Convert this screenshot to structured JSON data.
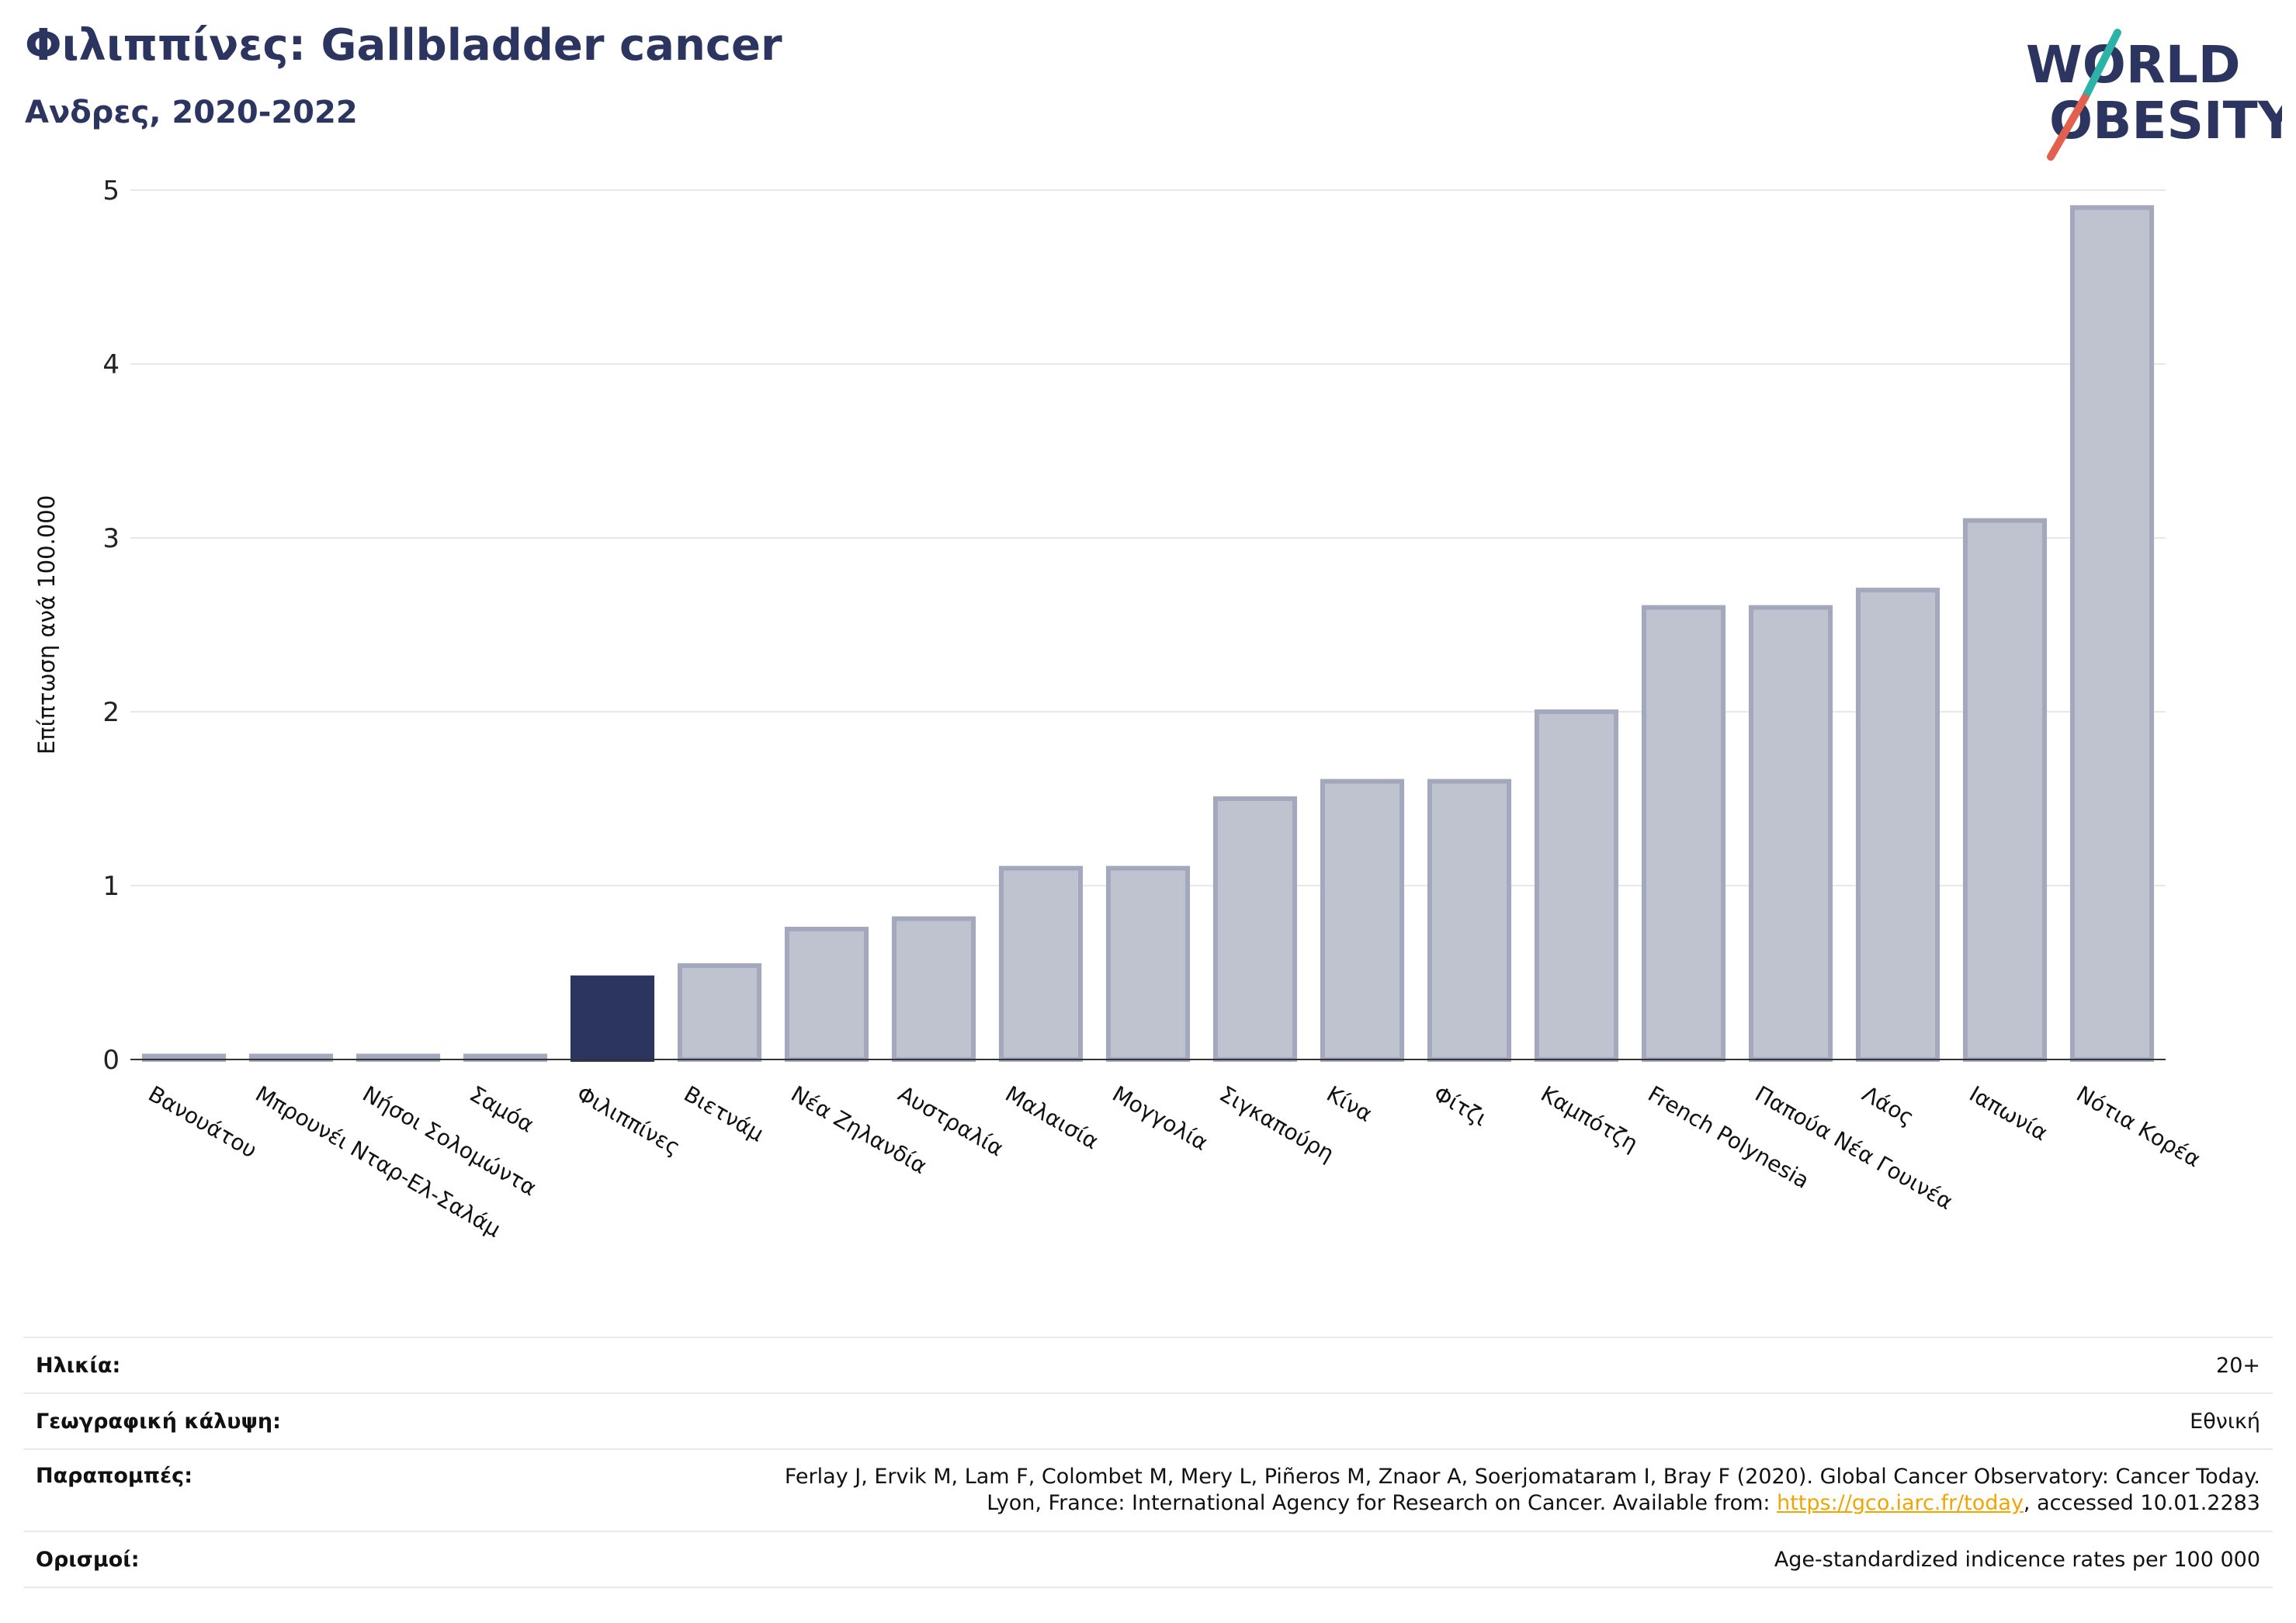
{
  "header": {
    "title": "Φιλιππίνες: Gallbladder cancer",
    "subtitle": "Ανδρες, 2020-2022"
  },
  "logo": {
    "line1": "WORLD",
    "line2": "OBESITY",
    "accent_teal": "#2ab3a6",
    "accent_red": "#e4604e",
    "text_color": "#2b3560"
  },
  "colors": {
    "highlight": "#2b3560",
    "bar_fill": "#bfc3d0",
    "bar_stroke": "#a3a8bd",
    "grid": "#e6e8ee"
  },
  "chart_data": {
    "type": "bar",
    "ylabel": "Επίπτωση ανά 100.000",
    "ylim": [
      0,
      5
    ],
    "yticks": [
      "0",
      "1",
      "2",
      "3",
      "4",
      "5"
    ],
    "grid": true,
    "highlight_category": "Φιλιππίνες",
    "categories": [
      "Βανουάτου",
      "Μπρουνέι Νταρ-Ελ-Σαλάμ",
      "Νήσοι Σολομώντα",
      "Σαμόα",
      "Φιλιππίνες",
      "Βιετνάμ",
      "Νέα Ζηλανδία",
      "Αυστραλία",
      "Μαλαισία",
      "Μογγολία",
      "Σιγκαπούρη",
      "Κίνα",
      "Φίτζι",
      "Καμπότζη",
      "French Polynesia",
      "Παπούα Νέα Γουινέα",
      "Λάος",
      "Ιαπωνία",
      "Νότια Κορέα"
    ],
    "values": [
      0.02,
      0.02,
      0.02,
      0.02,
      0.47,
      0.54,
      0.75,
      0.81,
      1.1,
      1.1,
      1.5,
      1.6,
      1.6,
      2.0,
      2.6,
      2.6,
      2.7,
      3.1,
      4.9
    ]
  },
  "meta": {
    "age_label": "Ηλικία:",
    "age_value": "20+",
    "coverage_label": "Γεωγραφική κάλυψη:",
    "coverage_value": "Εθνική",
    "refs_label": "Παραπομπές:",
    "refs_line1": "Ferlay J, Ervik M, Lam F, Colombet M, Mery L, Piñeros M, Znaor A, Soerjomataram I, Bray F (2020). Global Cancer Observatory: Cancer Today.",
    "refs_line2_prefix": "Lyon, France: International Agency for Research on Cancer. Available from: ",
    "refs_link": "https://gco.iarc.fr/today",
    "refs_line2_suffix": ", accessed 10.01.2283",
    "defs_label": "Ορισμοί:",
    "defs_value": "Age-standardized indicence rates per 100 000"
  }
}
